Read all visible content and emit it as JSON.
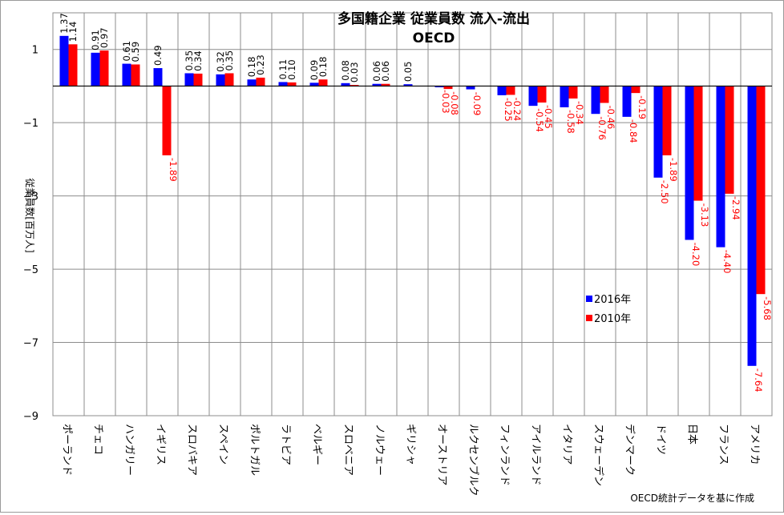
{
  "chart_data": {
    "type": "bar",
    "title": "多国籍企業 従業員数 流入-流出",
    "subtitle": "OECD",
    "ylabel": "従業員数[百万人]",
    "xlabel": "",
    "ylim": [
      -9,
      2
    ],
    "yticks": [
      1,
      -1,
      -3,
      -5,
      -7,
      -9
    ],
    "grid": true,
    "legend_position": "center-right",
    "categories": [
      "ポーランド",
      "チェコ",
      "ハンガリー",
      "イギリス",
      "スロバキア",
      "スペイン",
      "ポルトガル",
      "ラトビア",
      "ベルギー",
      "スロベニア",
      "ノルウェー",
      "ギリシャ",
      "オーストリア",
      "ルクセンブルク",
      "フィンランド",
      "アイルランド",
      "イタリア",
      "スウェーデン",
      "デンマーク",
      "ドイツ",
      "日本",
      "フランス",
      "アメリカ"
    ],
    "series": [
      {
        "name": "2016年",
        "color": "#0000ff",
        "values": [
          1.37,
          0.91,
          0.61,
          0.49,
          0.35,
          0.32,
          0.18,
          0.11,
          0.09,
          0.08,
          0.06,
          0.05,
          -0.03,
          -0.09,
          -0.25,
          -0.54,
          -0.58,
          -0.76,
          -0.84,
          -2.5,
          -4.2,
          -4.4,
          -7.64
        ],
        "labels": [
          "1.37",
          "0.91",
          "0.61",
          "0.49",
          "0.35",
          "0.32",
          "0.18",
          "0.11",
          "0.09",
          "0.08",
          "0.06",
          "0.05",
          "-0.03",
          "-0.09",
          "-0.25",
          "-0.54",
          "-0.58",
          "-0.76",
          "-0.84",
          "-2.50",
          "-4.20",
          "-4.40",
          "-7.64"
        ]
      },
      {
        "name": "2010年",
        "color": "#ff0000",
        "values": [
          1.14,
          0.97,
          0.59,
          -1.89,
          0.34,
          0.35,
          0.23,
          0.1,
          0.18,
          0.03,
          0.06,
          null,
          -0.08,
          null,
          -0.24,
          -0.45,
          -0.34,
          -0.46,
          -0.19,
          -1.89,
          -3.13,
          -2.94,
          -5.68
        ],
        "labels": [
          "1.14",
          "0.97",
          "0.59",
          "-1.89",
          "0.34",
          "0.35",
          "0.23",
          "0.10",
          "0.18",
          "0.03",
          "0.06",
          "",
          "-0.08",
          "",
          "-0.24",
          "-0.45",
          "-0.34",
          "-0.46",
          "-0.19",
          "-1.89",
          "-3.13",
          "-2.94",
          "-5.68"
        ]
      }
    ],
    "source_note": "OECD統計データを基に作成"
  }
}
